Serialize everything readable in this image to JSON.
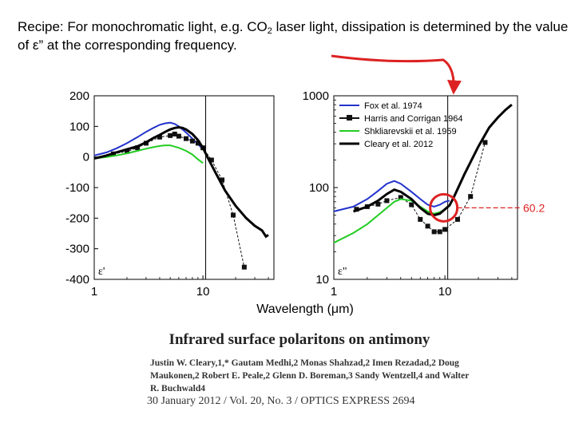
{
  "recipe": {
    "prefix": "Recipe:  For monochromatic light, e.g. CO",
    "subscript": "2",
    "suffix": " laser light, dissipation is determined by the value of ε” at the corresponding frequency."
  },
  "annotation_value": "60.2",
  "paper": {
    "title": "Infrared surface polaritons on antimony",
    "authors": "Justin W. Cleary,1,* Gautam Medhi,2 Monas Shahzad,2 Imen Rezadad,2 Doug Maukonen,2 Robert E. Peale,2 Glenn D. Boreman,3 Sandy Wentzell,4 and Walter R. Buchwald4",
    "citation": "30 January 2012 / Vol. 20,  No. 3 / OPTICS EXPRESS  2694"
  },
  "colors": {
    "fox": "#2233cc",
    "harris": "#111111",
    "shklyarevskii": "#22cc22",
    "cleary": "#000000",
    "highlight": "#dd2222"
  },
  "chart_data": [
    {
      "type": "line",
      "title": "",
      "panel_label": "ε'",
      "xlabel": "Wavelength (μm)",
      "ylabel": "",
      "x_scale": "log",
      "xlim": [
        1,
        45
      ],
      "ylim": [
        -400,
        200
      ],
      "y_ticks": [
        200,
        100,
        0,
        -100,
        -200,
        -300,
        -400
      ],
      "y_tick_labels": [
        "200",
        "100",
        "0",
        "-100",
        "-200",
        "-300",
        "-400"
      ],
      "x_ticks": [
        1,
        10
      ],
      "x_tick_labels": [
        "1",
        "10"
      ],
      "reference_line_x": 10.6,
      "series": [
        {
          "name": "Fox et al. 1974",
          "color_key": "fox",
          "marker": "none",
          "x": [
            1,
            1.3,
            1.6,
            2,
            2.5,
            3,
            3.5,
            4,
            4.5,
            5,
            5.5,
            6,
            6.5,
            7,
            8,
            9,
            10
          ],
          "y": [
            5,
            15,
            28,
            45,
            65,
            82,
            95,
            105,
            110,
            112,
            108,
            100,
            90,
            80,
            60,
            42,
            25
          ]
        },
        {
          "name": "Harris and Corrigan 1964",
          "color_key": "harris",
          "marker": "square",
          "x": [
            1.5,
            2,
            2.5,
            3,
            4,
            5,
            5.5,
            6,
            7,
            8,
            9,
            10,
            12,
            15,
            19,
            24
          ],
          "y": [
            10,
            18,
            30,
            45,
            65,
            70,
            75,
            68,
            60,
            52,
            45,
            30,
            -10,
            -75,
            -190,
            -360
          ]
        },
        {
          "name": "Shkliarevskii et al. 1959",
          "color_key": "shklyarevskii",
          "marker": "none",
          "x": [
            1,
            1.3,
            1.6,
            2,
            2.5,
            3,
            3.5,
            4,
            4.5,
            5,
            6,
            7,
            8,
            9,
            10
          ],
          "y": [
            -5,
            0,
            5,
            12,
            20,
            27,
            32,
            36,
            38,
            38,
            30,
            20,
            8,
            -8,
            -20
          ]
        },
        {
          "name": "Cleary et al. 2012",
          "color_key": "cleary",
          "marker": "none",
          "x": [
            1,
            1.3,
            1.6,
            2,
            2.5,
            3,
            3.5,
            4,
            4.5,
            5,
            5.5,
            6,
            6.5,
            7,
            8,
            9,
            10,
            11,
            13,
            16,
            20,
            25,
            30,
            35,
            38,
            40
          ],
          "y": [
            -5,
            5,
            15,
            25,
            35,
            48,
            62,
            72,
            82,
            90,
            95,
            97,
            95,
            90,
            75,
            55,
            30,
            0,
            -50,
            -110,
            -160,
            -200,
            -225,
            -240,
            -260,
            -255
          ]
        }
      ]
    },
    {
      "type": "line",
      "title": "",
      "panel_label": "ε\"",
      "xlabel": "Wavelength (μm)",
      "ylabel": "",
      "x_scale": "log",
      "y_scale": "log",
      "xlim": [
        1,
        45
      ],
      "ylim": [
        10,
        1000
      ],
      "y_ticks": [
        1000,
        100,
        10
      ],
      "y_tick_labels": [
        "1000",
        "100",
        "10"
      ],
      "x_ticks": [
        1,
        10
      ],
      "x_tick_labels": [
        "1",
        "10"
      ],
      "reference_line_x": 10.6,
      "highlight": {
        "x": 10.6,
        "y": 60.2,
        "label": "60.2"
      },
      "series": [
        {
          "name": "Fox et al. 1974",
          "color_key": "fox",
          "marker": "none",
          "x": [
            1,
            1.5,
            2,
            2.5,
            3,
            3.5,
            4,
            5,
            6,
            7,
            8,
            9,
            10,
            11
          ],
          "y": [
            55,
            62,
            75,
            92,
            110,
            118,
            110,
            90,
            75,
            65,
            62,
            65,
            70,
            72
          ]
        },
        {
          "name": "Harris and Corrigan 1964",
          "color_key": "harris",
          "marker": "square",
          "x": [
            1.6,
            2,
            2.5,
            3,
            4,
            5,
            6,
            7,
            8,
            9,
            10,
            13,
            17,
            23
          ],
          "y": [
            58,
            62,
            66,
            72,
            78,
            65,
            45,
            38,
            33,
            33,
            35,
            45,
            80,
            310
          ]
        },
        {
          "name": "Shkliarevskii et al. 1959",
          "color_key": "shklyarevskii",
          "marker": "none",
          "x": [
            1,
            1.5,
            2,
            2.5,
            3,
            3.5,
            4,
            5,
            6,
            7,
            8,
            9,
            10
          ],
          "y": [
            25,
            32,
            40,
            50,
            60,
            70,
            75,
            72,
            62,
            55,
            52,
            54,
            58
          ]
        },
        {
          "name": "Cleary et al. 2012",
          "color_key": "cleary",
          "marker": "none",
          "x": [
            1.5,
            2,
            2.5,
            3,
            3.5,
            4,
            5,
            6,
            7,
            8,
            9,
            10,
            11,
            12,
            15,
            20,
            25,
            30,
            35,
            40
          ],
          "y": [
            55,
            62,
            72,
            85,
            95,
            90,
            75,
            60,
            52,
            50,
            52,
            58,
            64,
            78,
            140,
            280,
            450,
            580,
            700,
            800
          ]
        }
      ]
    }
  ]
}
